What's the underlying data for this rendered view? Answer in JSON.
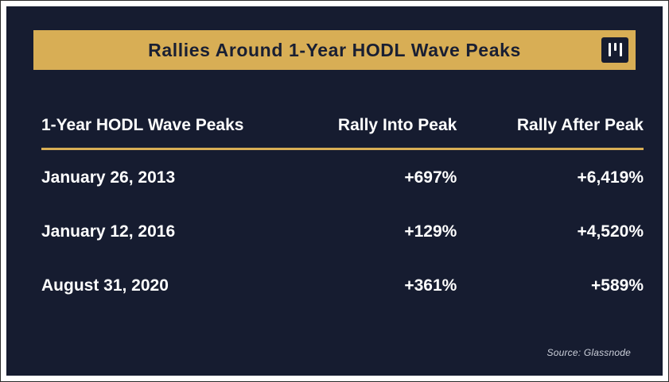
{
  "title": "Rallies Around 1-Year HODL Wave Peaks",
  "source": "Source: Glassnode",
  "logo": {
    "icon": "glassnode-bars-logo-icon"
  },
  "colors": {
    "card_background": "#161c30",
    "banner_gold": "#d8ae55",
    "banner_text": "#191f33",
    "table_text": "#ffffff",
    "header_underline": "#d8ae55",
    "source_text": "#ccd0da",
    "outer_border": "#2b2b2b",
    "page_background": "#ffffff"
  },
  "chart_data": {
    "type": "table",
    "title": "Rallies Around 1-Year HODL Wave Peaks",
    "columns": [
      "1-Year HODL Wave Peaks",
      "Rally Into Peak",
      "Rally After Peak"
    ],
    "rows": [
      [
        "January 26, 2013",
        "+697%",
        "+6,419%"
      ],
      [
        "January 12, 2016",
        "+129%",
        "+4,520%"
      ],
      [
        "August 31, 2020",
        "+361%",
        "+589%"
      ]
    ],
    "rows_numeric": [
      {
        "peak_date": "2013-01-26",
        "rally_into_peak_pct": 697,
        "rally_after_peak_pct": 6419
      },
      {
        "peak_date": "2016-01-12",
        "rally_into_peak_pct": 129,
        "rally_after_peak_pct": 4520
      },
      {
        "peak_date": "2020-08-31",
        "rally_into_peak_pct": 361,
        "rally_after_peak_pct": 589
      }
    ],
    "legend_position": "none",
    "grid": "off"
  }
}
